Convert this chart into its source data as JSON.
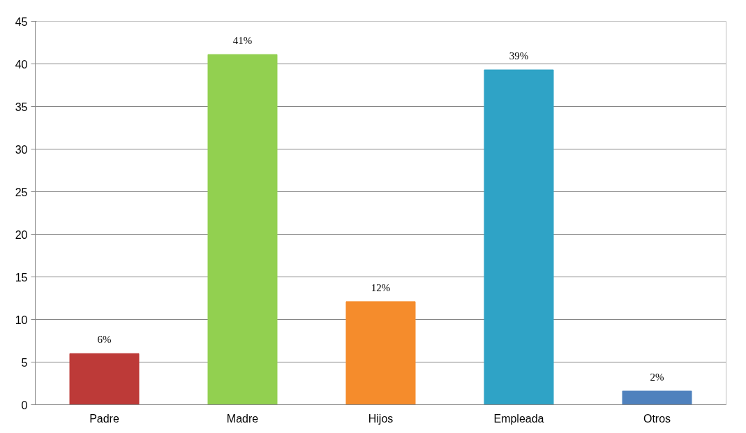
{
  "chart_data": {
    "type": "bar",
    "categories": [
      "Padre",
      "Madre",
      "Hijos",
      "Empleada",
      "Otros"
    ],
    "values": [
      6,
      41.1,
      12.1,
      39.3,
      1.6
    ],
    "colors": [
      "#bd3a38",
      "#92d050",
      "#f58c2c",
      "#2fa3c6",
      "#4f81bd"
    ],
    "value_labels": [
      "6%",
      "41%",
      "12%",
      "39%",
      "2%"
    ],
    "ylim": [
      0,
      45
    ],
    "yticks": [
      0,
      5,
      10,
      15,
      20,
      25,
      30,
      35,
      40,
      45
    ],
    "grid": "y"
  }
}
